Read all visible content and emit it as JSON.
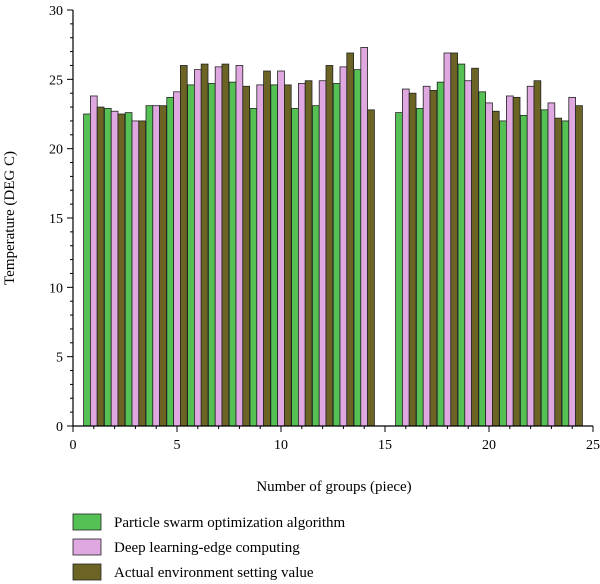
{
  "chart_data": {
    "type": "bar",
    "xlabel": "Number of groups (piece)",
    "ylabel": "Temperature (DEG C)",
    "xlim": [
      0,
      25
    ],
    "ylim": [
      0,
      30
    ],
    "x_ticks": [
      "0",
      "5",
      "10",
      "15",
      "20",
      "25"
    ],
    "y_ticks": [
      "0",
      "5",
      "10",
      "15",
      "20",
      "25",
      "30"
    ],
    "grid": false,
    "legend_position": "bottom-left",
    "categories": [
      1,
      2,
      3,
      4,
      5,
      6,
      7,
      8,
      9,
      10,
      11,
      12,
      13,
      14,
      16,
      17,
      18,
      19,
      20,
      21,
      22,
      23,
      24
    ],
    "series": [
      {
        "name": "Particle swarm optimization algorithm",
        "color": "#55c155",
        "values": [
          22.5,
          22.9,
          22.6,
          23.1,
          23.7,
          24.6,
          24.7,
          24.8,
          22.9,
          24.6,
          22.9,
          23.1,
          24.7,
          25.7,
          22.6,
          22.9,
          24.8,
          26.1,
          24.1,
          22.0,
          22.4,
          22.8,
          22.0
        ]
      },
      {
        "name": "Deep learning-edge computing",
        "color": "#e0a8e0",
        "values": [
          23.8,
          22.7,
          22.0,
          23.1,
          24.1,
          25.7,
          25.9,
          26.0,
          24.6,
          25.6,
          24.7,
          24.9,
          25.9,
          27.3,
          24.3,
          24.5,
          26.9,
          24.9,
          23.3,
          23.8,
          24.5,
          23.3,
          23.7
        ]
      },
      {
        "name": "Actual environment setting value",
        "color": "#6b6424",
        "values": [
          23.0,
          22.5,
          22.0,
          23.1,
          26.0,
          26.1,
          26.1,
          24.5,
          25.6,
          24.6,
          24.9,
          26.0,
          26.9,
          22.8,
          24.0,
          24.2,
          26.9,
          25.8,
          22.7,
          23.7,
          24.9,
          22.2,
          23.1
        ]
      }
    ]
  }
}
